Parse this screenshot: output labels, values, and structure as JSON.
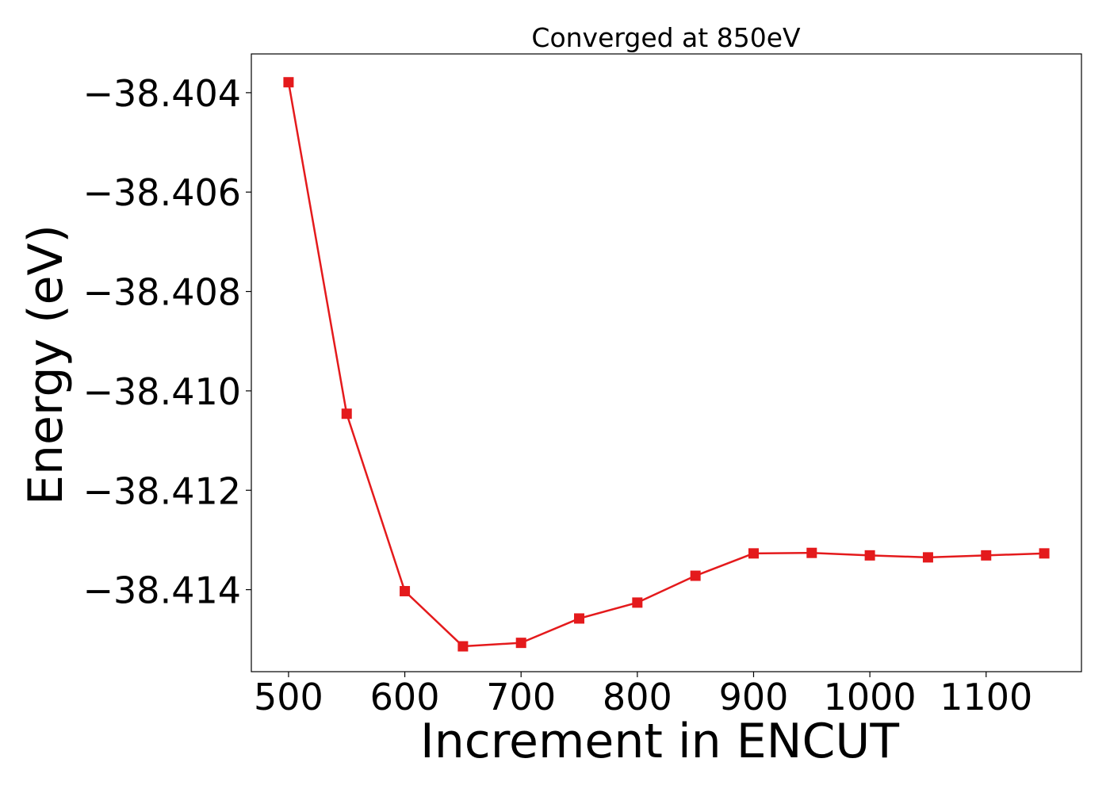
{
  "chart_data": {
    "type": "line",
    "title": "Converged at 850eV",
    "xlabel": "Increment in ENCUT",
    "ylabel": "Energy (eV)",
    "xlim": [
      468,
      1182
    ],
    "ylim": [
      -38.41565,
      -38.40322
    ],
    "xticks": [
      500,
      600,
      700,
      800,
      900,
      1000,
      1100
    ],
    "yticks": [
      -38.404,
      -38.406,
      -38.408,
      -38.41,
      -38.412,
      -38.414
    ],
    "ytick_labels": [
      "−38.404",
      "−38.406",
      "−38.408",
      "−38.410",
      "−38.412",
      "−38.414"
    ],
    "grid": false,
    "series": [
      {
        "color": "#e41a1c",
        "marker": "square",
        "x": [
          500,
          550,
          600,
          650,
          700,
          750,
          800,
          850,
          900,
          950,
          1000,
          1050,
          1100,
          1150
        ],
        "y": [
          -38.40379,
          -38.41046,
          -38.41403,
          -38.41514,
          -38.41507,
          -38.41458,
          -38.41426,
          -38.41372,
          -38.41327,
          -38.41326,
          -38.41331,
          -38.41335,
          -38.41331,
          -38.41327
        ]
      }
    ]
  }
}
